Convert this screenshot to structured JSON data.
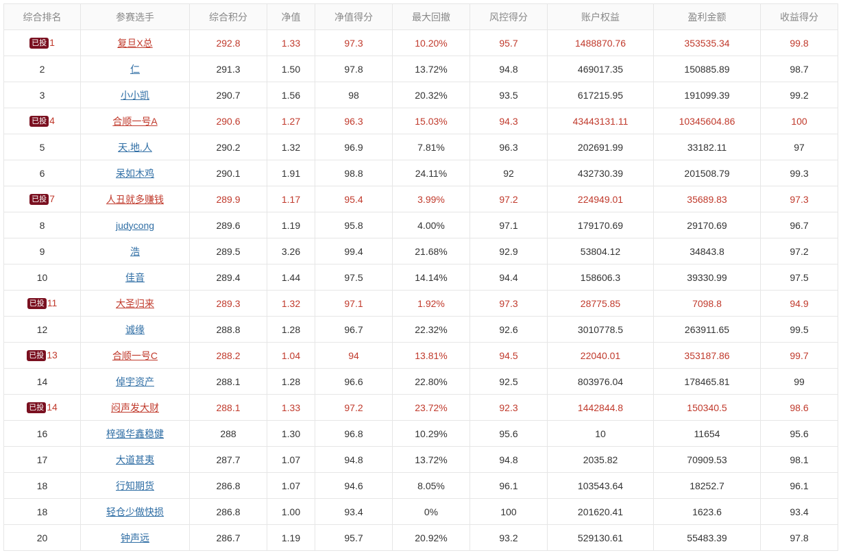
{
  "colors": {
    "highlight": "#c0392b",
    "link": "#2e6da4",
    "badge_bg": "#7a1020",
    "header_text": "#888888"
  },
  "table": {
    "headers": [
      "综合排名",
      "参赛选手",
      "综合积分",
      "净值",
      "净值得分",
      "最大回撤",
      "风控得分",
      "账户权益",
      "盈利金额",
      "收益得分"
    ],
    "rows": [
      {
        "badge": "已投",
        "highlight": true,
        "rank": "1",
        "name": "复旦X总",
        "score": "292.8",
        "nav": "1.33",
        "nav_score": "97.3",
        "drawdown": "10.20%",
        "risk_score": "95.7",
        "equity": "1488870.76",
        "profit": "353535.34",
        "return_score": "99.8"
      },
      {
        "badge": "",
        "highlight": false,
        "rank": "2",
        "name": "仁",
        "score": "291.3",
        "nav": "1.50",
        "nav_score": "97.8",
        "drawdown": "13.72%",
        "risk_score": "94.8",
        "equity": "469017.35",
        "profit": "150885.89",
        "return_score": "98.7"
      },
      {
        "badge": "",
        "highlight": false,
        "rank": "3",
        "name": "小小凯",
        "score": "290.7",
        "nav": "1.56",
        "nav_score": "98",
        "drawdown": "20.32%",
        "risk_score": "93.5",
        "equity": "617215.95",
        "profit": "191099.39",
        "return_score": "99.2"
      },
      {
        "badge": "已投",
        "highlight": true,
        "rank": "4",
        "name": "合顺一号A",
        "score": "290.6",
        "nav": "1.27",
        "nav_score": "96.3",
        "drawdown": "15.03%",
        "risk_score": "94.3",
        "equity": "43443131.11",
        "profit": "10345604.86",
        "return_score": "100"
      },
      {
        "badge": "",
        "highlight": false,
        "rank": "5",
        "name": "天.地.人",
        "score": "290.2",
        "nav": "1.32",
        "nav_score": "96.9",
        "drawdown": "7.81%",
        "risk_score": "96.3",
        "equity": "202691.99",
        "profit": "33182.11",
        "return_score": "97"
      },
      {
        "badge": "",
        "highlight": false,
        "rank": "6",
        "name": "呆如木鸡",
        "score": "290.1",
        "nav": "1.91",
        "nav_score": "98.8",
        "drawdown": "24.11%",
        "risk_score": "92",
        "equity": "432730.39",
        "profit": "201508.79",
        "return_score": "99.3"
      },
      {
        "badge": "已投",
        "highlight": true,
        "rank": "7",
        "name": "人丑就多赚钱",
        "score": "289.9",
        "nav": "1.17",
        "nav_score": "95.4",
        "drawdown": "3.99%",
        "risk_score": "97.2",
        "equity": "224949.01",
        "profit": "35689.83",
        "return_score": "97.3"
      },
      {
        "badge": "",
        "highlight": false,
        "rank": "8",
        "name": "judycong",
        "score": "289.6",
        "nav": "1.19",
        "nav_score": "95.8",
        "drawdown": "4.00%",
        "risk_score": "97.1",
        "equity": "179170.69",
        "profit": "29170.69",
        "return_score": "96.7"
      },
      {
        "badge": "",
        "highlight": false,
        "rank": "9",
        "name": "浩",
        "score": "289.5",
        "nav": "3.26",
        "nav_score": "99.4",
        "drawdown": "21.68%",
        "risk_score": "92.9",
        "equity": "53804.12",
        "profit": "34843.8",
        "return_score": "97.2"
      },
      {
        "badge": "",
        "highlight": false,
        "rank": "10",
        "name": "佳音",
        "score": "289.4",
        "nav": "1.44",
        "nav_score": "97.5",
        "drawdown": "14.14%",
        "risk_score": "94.4",
        "equity": "158606.3",
        "profit": "39330.99",
        "return_score": "97.5"
      },
      {
        "badge": "已投",
        "highlight": true,
        "rank": "11",
        "name": "大圣归来",
        "score": "289.3",
        "nav": "1.32",
        "nav_score": "97.1",
        "drawdown": "1.92%",
        "risk_score": "97.3",
        "equity": "28775.85",
        "profit": "7098.8",
        "return_score": "94.9"
      },
      {
        "badge": "",
        "highlight": false,
        "rank": "12",
        "name": "诚缘",
        "score": "288.8",
        "nav": "1.28",
        "nav_score": "96.7",
        "drawdown": "22.32%",
        "risk_score": "92.6",
        "equity": "3010778.5",
        "profit": "263911.65",
        "return_score": "99.5"
      },
      {
        "badge": "已投",
        "highlight": true,
        "rank": "13",
        "name": "合顺一号C",
        "score": "288.2",
        "nav": "1.04",
        "nav_score": "94",
        "drawdown": "13.81%",
        "risk_score": "94.5",
        "equity": "22040.01",
        "profit": "353187.86",
        "return_score": "99.7"
      },
      {
        "badge": "",
        "highlight": false,
        "rank": "14",
        "name": "倬宇资产",
        "score": "288.1",
        "nav": "1.28",
        "nav_score": "96.6",
        "drawdown": "22.80%",
        "risk_score": "92.5",
        "equity": "803976.04",
        "profit": "178465.81",
        "return_score": "99"
      },
      {
        "badge": "已投",
        "highlight": true,
        "rank": "14",
        "name": "闷声发大财",
        "score": "288.1",
        "nav": "1.33",
        "nav_score": "97.2",
        "drawdown": "23.72%",
        "risk_score": "92.3",
        "equity": "1442844.8",
        "profit": "150340.5",
        "return_score": "98.6"
      },
      {
        "badge": "",
        "highlight": false,
        "rank": "16",
        "name": "梓强华鑫稳健",
        "score": "288",
        "nav": "1.30",
        "nav_score": "96.8",
        "drawdown": "10.29%",
        "risk_score": "95.6",
        "equity": "10",
        "profit": "11654",
        "return_score": "95.6"
      },
      {
        "badge": "",
        "highlight": false,
        "rank": "17",
        "name": "大道甚夷",
        "score": "287.7",
        "nav": "1.07",
        "nav_score": "94.8",
        "drawdown": "13.72%",
        "risk_score": "94.8",
        "equity": "2035.82",
        "profit": "70909.53",
        "return_score": "98.1"
      },
      {
        "badge": "",
        "highlight": false,
        "rank": "18",
        "name": "行知期货",
        "score": "286.8",
        "nav": "1.07",
        "nav_score": "94.6",
        "drawdown": "8.05%",
        "risk_score": "96.1",
        "equity": "103543.64",
        "profit": "18252.7",
        "return_score": "96.1"
      },
      {
        "badge": "",
        "highlight": false,
        "rank": "18",
        "name": "轻仓少做快损",
        "score": "286.8",
        "nav": "1.00",
        "nav_score": "93.4",
        "drawdown": "0%",
        "risk_score": "100",
        "equity": "201620.41",
        "profit": "1623.6",
        "return_score": "93.4"
      },
      {
        "badge": "",
        "highlight": false,
        "rank": "20",
        "name": "钟声远",
        "score": "286.7",
        "nav": "1.19",
        "nav_score": "95.7",
        "drawdown": "20.92%",
        "risk_score": "93.2",
        "equity": "529130.61",
        "profit": "55483.39",
        "return_score": "97.8"
      }
    ]
  }
}
